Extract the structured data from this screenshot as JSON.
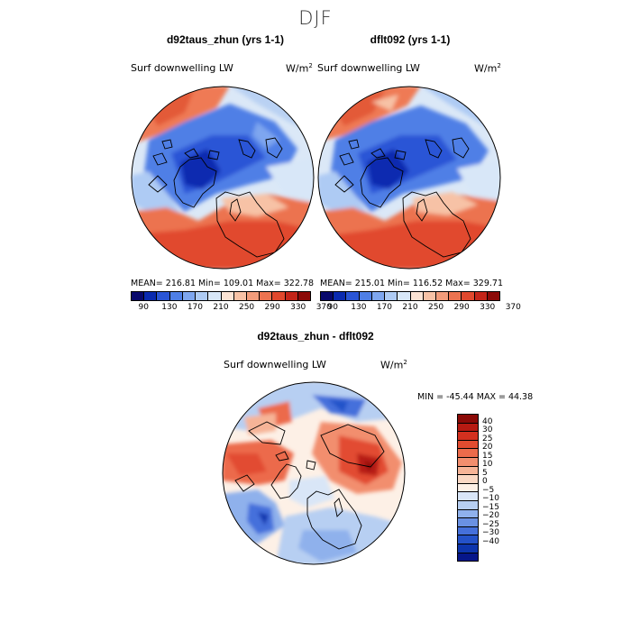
{
  "figure": {
    "title": "DJF"
  },
  "panels": [
    {
      "title": "d92taus_zhun (yrs 1-1)",
      "label": "Surf downwelling LW",
      "units": "W/m",
      "units_exp": "2",
      "stats": "MEAN= 216.81   Min= 109.01   Max= 322.78"
    },
    {
      "title": "dflt092 (yrs 1-1)",
      "label": "Surf downwelling LW",
      "units": "W/m",
      "units_exp": "2",
      "stats": "MEAN= 215.01   Min= 116.52   Max= 329.71"
    }
  ],
  "abs_colorbar": {
    "colors": [
      "#08086b",
      "#0a2ab0",
      "#2a55d6",
      "#4f7fe6",
      "#7ea6ef",
      "#aecbf4",
      "#d8e7f8",
      "#fbe3d4",
      "#f7c2a6",
      "#f29c7b",
      "#ec7350",
      "#e1482d",
      "#c42418",
      "#8c0a08"
    ],
    "ticks": [
      "90",
      "130",
      "170",
      "210",
      "250",
      "290",
      "330",
      "370"
    ]
  },
  "diff_panel": {
    "title": "d92taus_zhun - dflt092",
    "label": "Surf downwelling LW",
    "units": "W/m",
    "units_exp": "2",
    "stats": "MIN = -45.44  MAX =  44.38"
  },
  "diff_colorbar": {
    "colors": [
      "#8b0a07",
      "#b71a12",
      "#d3301f",
      "#e24c30",
      "#ec6b4b",
      "#f28e6e",
      "#f6b497",
      "#fad8c4",
      "#fdf0e6",
      "#d9e6f7",
      "#b7cff2",
      "#8fb1ec",
      "#6a91e3",
      "#4570db",
      "#2452c9",
      "#0d35ad",
      "#06168a"
    ],
    "ticks": [
      "40",
      "30",
      "25",
      "20",
      "15",
      "10",
      "5",
      "0",
      "−5",
      "−10",
      "−15",
      "−20",
      "−25",
      "−30",
      "−40"
    ]
  }
}
